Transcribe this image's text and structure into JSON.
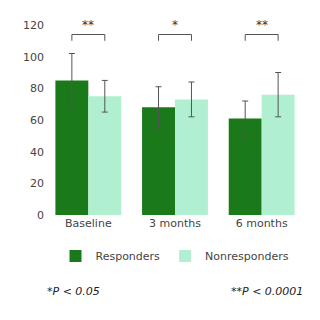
{
  "chart_data": {
    "type": "bar",
    "categories": [
      "Baseline",
      "3 months",
      "6 months"
    ],
    "series": [
      {
        "name": "Responders",
        "color": "#1a7a1a",
        "values": [
          85,
          68,
          61
        ],
        "errors": [
          17,
          13,
          11
        ]
      },
      {
        "name": "Nonresponders",
        "color": "#b0f0d0",
        "values": [
          75,
          73,
          76
        ],
        "errors": [
          10,
          11,
          14
        ]
      }
    ],
    "ylim": [
      0,
      120
    ],
    "yticks": [
      0,
      20,
      40,
      60,
      80,
      100,
      120
    ],
    "grid": false,
    "legend": "bottom",
    "annotations": [
      {
        "category": "Baseline",
        "text": "**"
      },
      {
        "category": "3 months",
        "text": "*"
      },
      {
        "category": "6 months",
        "text": "**"
      },
      {
        "text": "*P < 0.05"
      },
      {
        "text": "**P < 0.0001"
      }
    ]
  }
}
